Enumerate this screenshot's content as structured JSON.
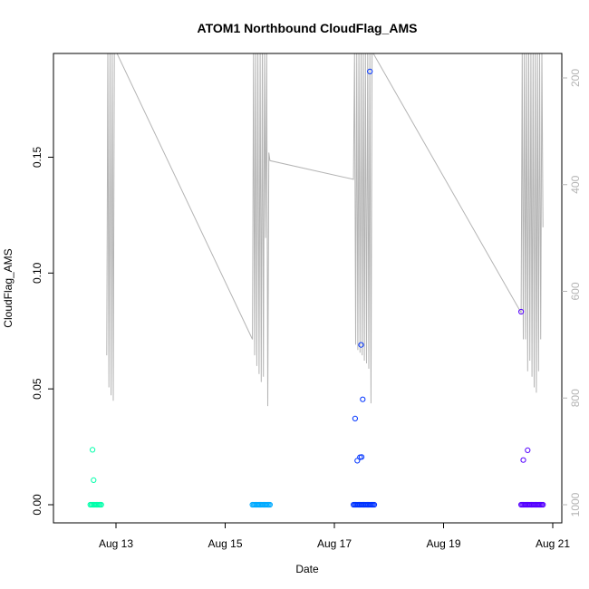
{
  "chart_data": {
    "type": "scatter",
    "title": "ATOM1 Northbound CloudFlag_AMS",
    "xlabel": "Date",
    "ylabel": "CloudFlag_AMS",
    "x_date_year": 2014,
    "xlim": [
      12.2,
      21.25
    ],
    "ylim": [
      0,
      0.19
    ],
    "x_ticks": [
      {
        "value": 13,
        "label": "Aug 13"
      },
      {
        "value": 15,
        "label": "Aug 15"
      },
      {
        "value": 17,
        "label": "Aug 17"
      },
      {
        "value": 19,
        "label": "Aug 19"
      },
      {
        "value": 21,
        "label": "Aug 21"
      }
    ],
    "y_ticks": [
      {
        "value": 0.0,
        "label": "0.00"
      },
      {
        "value": 0.05,
        "label": "0.05"
      },
      {
        "value": 0.1,
        "label": "0.10"
      },
      {
        "value": 0.15,
        "label": "0.15"
      }
    ],
    "secondary_axis": {
      "lim": [
        1000,
        150
      ],
      "ticks": [
        {
          "value": 200,
          "label": "200"
        },
        {
          "value": 400,
          "label": "400"
        },
        {
          "value": 600,
          "label": "600"
        },
        {
          "value": 800,
          "label": "800"
        },
        {
          "value": 1000,
          "label": "1000"
        }
      ],
      "color": "#b4b4b4"
    },
    "secondary_line": [
      [
        12.83,
        720
      ],
      [
        12.85,
        150
      ],
      [
        12.87,
        780
      ],
      [
        12.89,
        150
      ],
      [
        12.91,
        795
      ],
      [
        12.93,
        150
      ],
      [
        12.95,
        805
      ],
      [
        12.97,
        150
      ],
      [
        13.0,
        150
      ],
      [
        15.5,
        690
      ],
      [
        15.52,
        150
      ],
      [
        15.54,
        720
      ],
      [
        15.56,
        150
      ],
      [
        15.58,
        740
      ],
      [
        15.6,
        150
      ],
      [
        15.62,
        755
      ],
      [
        15.64,
        150
      ],
      [
        15.66,
        770
      ],
      [
        15.68,
        150
      ],
      [
        15.7,
        760
      ],
      [
        15.72,
        150
      ],
      [
        15.74,
        500
      ],
      [
        15.76,
        150
      ],
      [
        15.78,
        815
      ],
      [
        15.8,
        340
      ],
      [
        15.82,
        355
      ],
      [
        17.35,
        390
      ],
      [
        17.37,
        150
      ],
      [
        17.39,
        700
      ],
      [
        17.41,
        150
      ],
      [
        17.43,
        710
      ],
      [
        17.45,
        150
      ],
      [
        17.47,
        715
      ],
      [
        17.49,
        150
      ],
      [
        17.51,
        720
      ],
      [
        17.53,
        150
      ],
      [
        17.55,
        730
      ],
      [
        17.57,
        150
      ],
      [
        17.59,
        735
      ],
      [
        17.61,
        150
      ],
      [
        17.63,
        745
      ],
      [
        17.65,
        150
      ],
      [
        17.67,
        810
      ],
      [
        17.69,
        150
      ],
      [
        20.42,
        640
      ],
      [
        20.44,
        150
      ],
      [
        20.46,
        690
      ],
      [
        20.48,
        150
      ],
      [
        20.5,
        690
      ],
      [
        20.52,
        150
      ],
      [
        20.54,
        750
      ],
      [
        20.56,
        150
      ],
      [
        20.58,
        730
      ],
      [
        20.6,
        150
      ],
      [
        20.62,
        760
      ],
      [
        20.64,
        150
      ],
      [
        20.66,
        780
      ],
      [
        20.68,
        150
      ],
      [
        20.7,
        790
      ],
      [
        20.72,
        150
      ],
      [
        20.74,
        750
      ],
      [
        20.76,
        150
      ],
      [
        20.78,
        690
      ],
      [
        20.8,
        150
      ],
      [
        20.82,
        480
      ]
    ],
    "series": [
      {
        "color": "#00ffaa",
        "points": [
          [
            12.57,
            0.0237
          ],
          [
            12.59,
            0.0106
          ]
        ],
        "zero_run": [
          12.53,
          12.73
        ]
      },
      {
        "color": "#00aaff",
        "points": [],
        "zero_run": [
          15.5,
          15.82
        ]
      },
      {
        "color": "#0033ff",
        "points": [
          [
            17.65,
            0.187
          ],
          [
            17.49,
            0.069
          ],
          [
            17.52,
            0.0455
          ],
          [
            17.38,
            0.0372
          ],
          [
            17.42,
            0.019
          ],
          [
            17.47,
            0.0205
          ],
          [
            17.5,
            0.0206
          ]
        ],
        "zero_run": [
          17.35,
          17.73
        ]
      },
      {
        "color": "#5500ff",
        "points": [
          [
            20.42,
            0.0833
          ],
          [
            20.54,
            0.0235
          ],
          [
            20.46,
            0.0193
          ]
        ],
        "zero_run": [
          20.42,
          20.82
        ]
      }
    ]
  }
}
